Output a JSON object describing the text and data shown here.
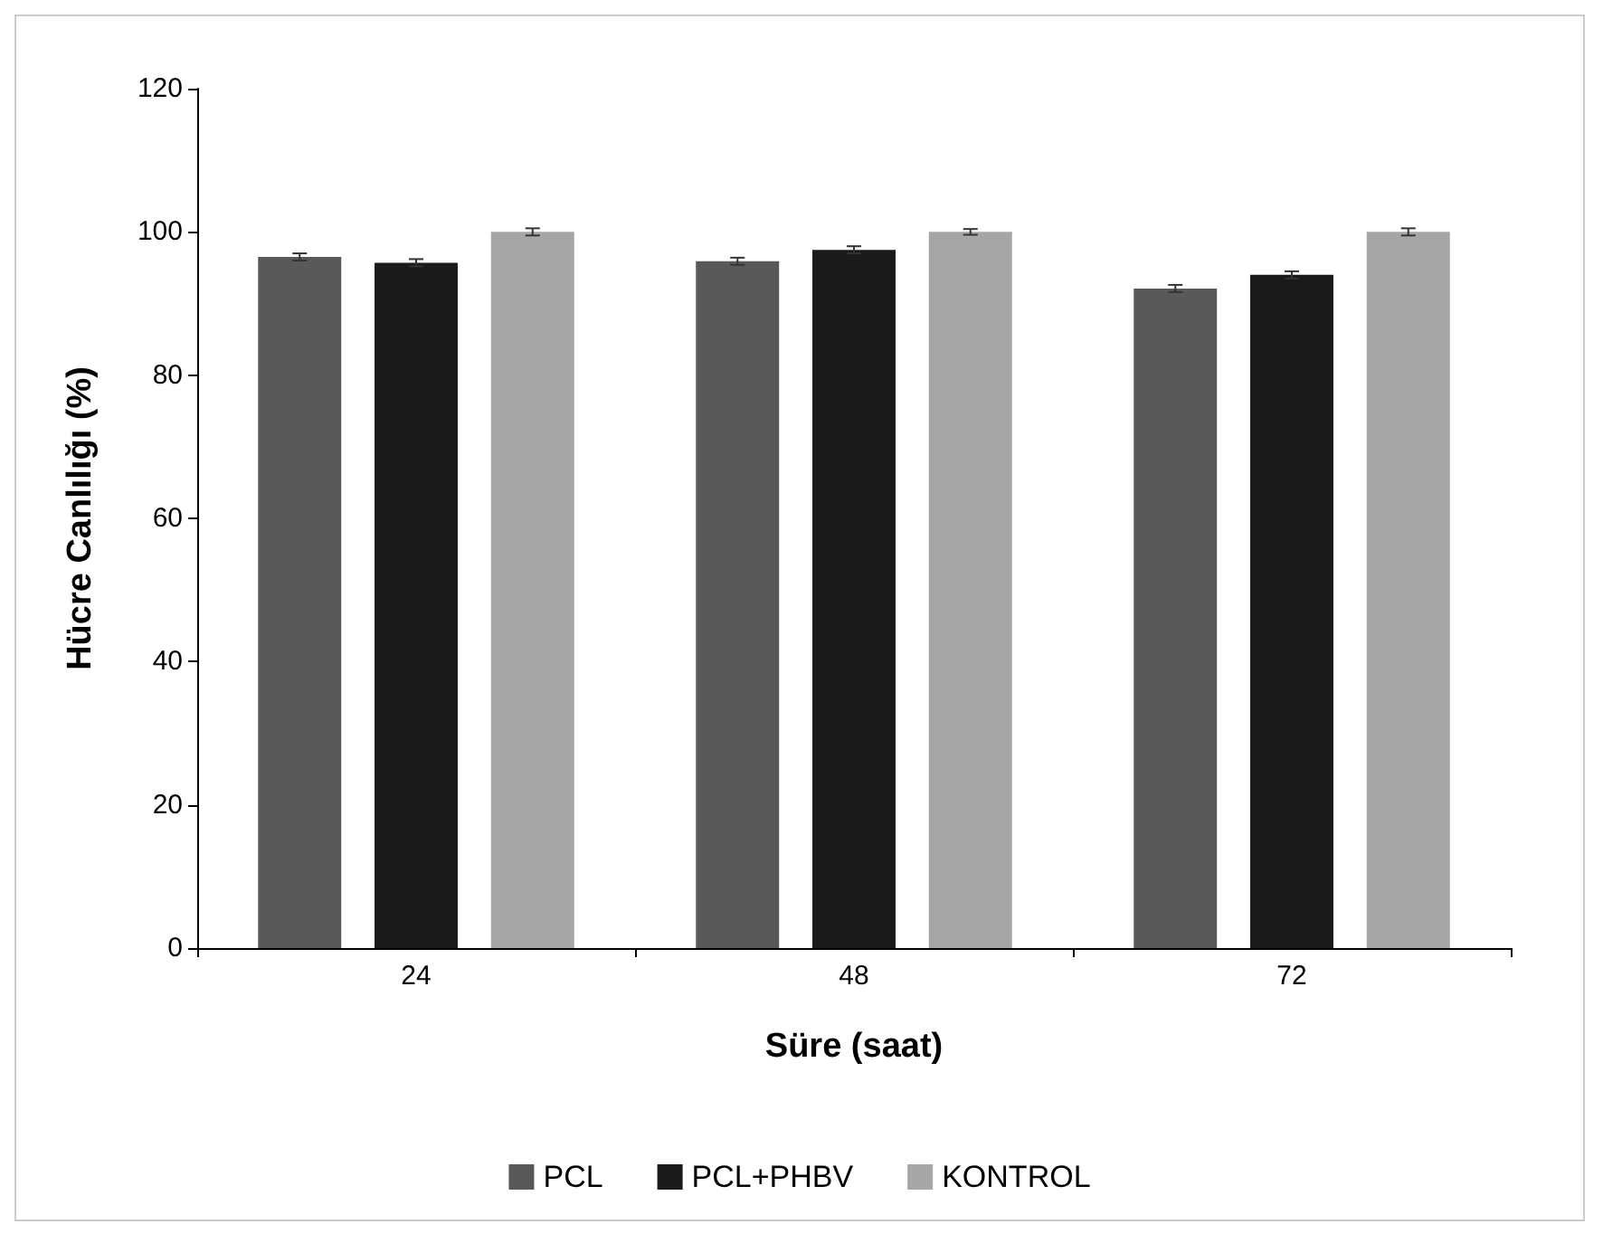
{
  "chart_data": {
    "type": "bar",
    "xlabel": "Süre (saat)",
    "ylabel": "Hücre Canlılığı (%)",
    "categories": [
      "24",
      "48",
      "72"
    ],
    "series": [
      {
        "name": "PCL",
        "color": "#595959",
        "values": [
          96.5,
          95.9,
          92.1
        ],
        "errors": [
          0.5,
          0.5,
          0.5
        ]
      },
      {
        "name": "PCL+PHBV",
        "color": "#1a1a1a",
        "values": [
          95.7,
          97.5,
          94.0
        ],
        "errors": [
          0.5,
          0.5,
          0.5
        ]
      },
      {
        "name": "KONTROL",
        "color": "#a6a6a6",
        "values": [
          100,
          100,
          100
        ],
        "errors": [
          0.5,
          0.4,
          0.5
        ]
      }
    ],
    "ylim": [
      0,
      120
    ],
    "yticks": [
      0,
      20,
      40,
      60,
      80,
      100,
      120
    ],
    "grid": false,
    "legend": "bottom"
  }
}
